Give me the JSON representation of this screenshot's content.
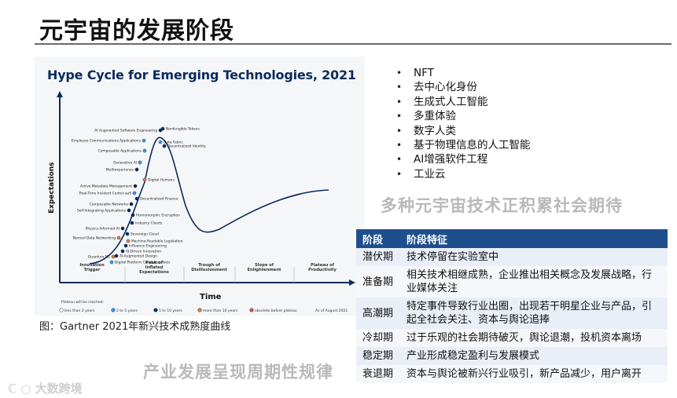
{
  "slide": {
    "title": "元宇宙的发展阶段",
    "caption": "图：Gartner 2021年新兴技术成熟度曲线",
    "watermark_left": "产业发展呈现周期性规律",
    "watermark_right": "多种元宇宙技术正积累社会期待",
    "logo": "大数跨境"
  },
  "hype_chart": {
    "title": "Hype Cycle for Emerging Technologies, 2021",
    "ylabel": "Expectations",
    "xlabel": "Time",
    "phases": [
      [
        "Innovation",
        "Trigger"
      ],
      [
        "Peak of",
        "Inflated",
        "Expectations"
      ],
      [
        "Trough of",
        "Disillusionment"
      ],
      [
        "Slope of",
        "Enlightenment"
      ],
      [
        "Plateau of",
        "Productivity"
      ]
    ],
    "plateau_note": "Plateau will be reached:",
    "legend": [
      {
        "label": "less than 2 years",
        "color": "#ffffff"
      },
      {
        "label": "2 to 5 years",
        "color": "#3a9ad9"
      },
      {
        "label": "5 to 10 years",
        "color": "#0b2a5b"
      },
      {
        "label": "more than 10 years",
        "color": "#e07b39"
      },
      {
        "label": "obsolete before plateau",
        "color": "#d9534f"
      }
    ],
    "as_of": "As of August 2021",
    "technologies": [
      {
        "name": "AI Augmented Software Engineering",
        "side": "left",
        "color": "#0b2a5b"
      },
      {
        "name": "Nonfungible Tokens",
        "side": "right",
        "color": "#0b2a5b"
      },
      {
        "name": "Employee Communications Applications",
        "side": "left",
        "color": "#3a9ad9"
      },
      {
        "name": "Data Fabric",
        "side": "right",
        "color": "#3a9ad9"
      },
      {
        "name": "Decentralized Identity",
        "side": "right",
        "color": "#0b2a5b"
      },
      {
        "name": "Composable Applications",
        "side": "left",
        "color": "#3a9ad9"
      },
      {
        "name": "Generative AI",
        "side": "left",
        "color": "#3a9ad9"
      },
      {
        "name": "Multiexperience",
        "side": "left",
        "color": "#0b2a5b"
      },
      {
        "name": "Digital Humans",
        "side": "right",
        "color": "#e07b39"
      },
      {
        "name": "Active Metadata Management",
        "side": "left",
        "color": "#0b2a5b"
      },
      {
        "name": "Real-Time Incident Center-aaS",
        "side": "left",
        "color": "#3a9ad9"
      },
      {
        "name": "Decentralized Finance",
        "side": "right",
        "color": "#0b2a5b"
      },
      {
        "name": "Composable Networks",
        "side": "left",
        "color": "#0b2a5b"
      },
      {
        "name": "Self-Integrating Applications",
        "side": "left",
        "color": "#0b2a5b"
      },
      {
        "name": "Homomorphic Encryption",
        "side": "right",
        "color": "#0b2a5b"
      },
      {
        "name": "Industry Clouds",
        "side": "right",
        "color": "#0b2a5b"
      },
      {
        "name": "Physics-Informed AI",
        "side": "left",
        "color": "#0b2a5b"
      },
      {
        "name": "Sovereign Cloud",
        "side": "right",
        "color": "#0b2a5b"
      },
      {
        "name": "Named Data Networking",
        "side": "left",
        "color": "#e07b39"
      },
      {
        "name": "Machine-Readable Legislation",
        "side": "right",
        "color": "#e07b39"
      },
      {
        "name": "Influence Engineering",
        "side": "right",
        "color": "#0b2a5b"
      },
      {
        "name": "AI-Driven Innovation",
        "side": "right",
        "color": "#0b2a5b"
      },
      {
        "name": "Quantum ML",
        "side": "left",
        "color": "#e07b39"
      },
      {
        "name": "AI-Augmented Design",
        "side": "right",
        "color": "#0b2a5b"
      },
      {
        "name": "Digital Platform Conductor Tools",
        "side": "right",
        "color": "#3a9ad9"
      }
    ]
  },
  "tech_list": [
    "NFT",
    "去中心化身份",
    "生成式人工智能",
    "多重体验",
    "数字人类",
    "基于物理信息的人工智能",
    "AI增强软件工程",
    "工业云"
  ],
  "stage_table": {
    "headers": [
      "阶段",
      "阶段特征"
    ],
    "rows": [
      [
        "潜伏期",
        "技术停留在实验室中"
      ],
      [
        "准备期",
        "相关技术相继成熟，企业推出相关概念及发展战略，行业媒体关注"
      ],
      [
        "高潮期",
        "特定事件导致行业出圈，出现若干明星企业与产品，引起全社会关注、资本与舆论追捧"
      ],
      [
        "冷却期",
        "过于乐观的社会期待破灭，舆论退潮，投机资本离场"
      ],
      [
        "稳定期",
        "产业形成稳定盈利与发展模式"
      ],
      [
        "衰退期",
        "资本与舆论被新兴行业吸引，新产品减少，用户离开"
      ]
    ]
  }
}
